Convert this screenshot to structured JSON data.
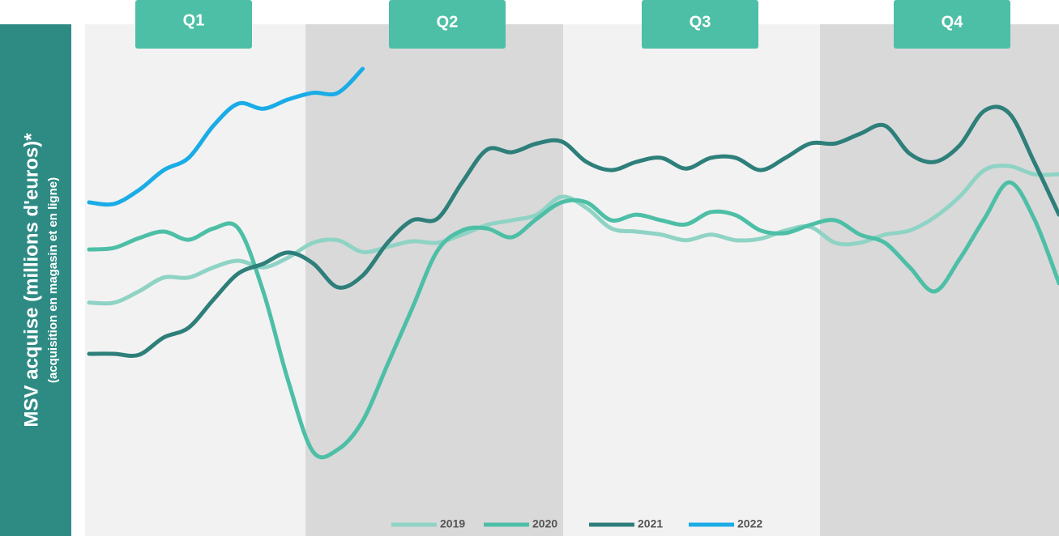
{
  "chart_data": {
    "type": "line",
    "y_label": "MSV acquise (millions d'euros)*",
    "y_label_note": "(acquisition en magasin et en ligne)",
    "quarters": [
      "Q1",
      "Q2",
      "Q3",
      "Q4"
    ],
    "categories": [
      null,
      null,
      null,
      null,
      null,
      null,
      null,
      null,
      null,
      null,
      null,
      null,
      null,
      null,
      null,
      null,
      null,
      null,
      null,
      null,
      null,
      null,
      null,
      null,
      null,
      null,
      null,
      null,
      null,
      null,
      null,
      null,
      null,
      null,
      null,
      null,
      null,
      null,
      null,
      null
    ],
    "ylim": [
      0,
      100
    ],
    "series": [
      {
        "name": "2019",
        "color": "#8fd3c5",
        "values": [
          45.6,
          45.6,
          47.8,
          50.5,
          50.5,
          52.5,
          53.8,
          52.5,
          54.4,
          57.3,
          57.8,
          55.5,
          56.5,
          57.6,
          57.3,
          58.9,
          60.8,
          61.7,
          62.8,
          66.3,
          64.1,
          60.1,
          59.5,
          58.9,
          57.8,
          58.9,
          57.8,
          58.1,
          59.7,
          60.4,
          57.3,
          57.3,
          58.9,
          59.7,
          62.3,
          66.3,
          71.5,
          72.3,
          70.7,
          70.7
        ]
      },
      {
        "name": "2020",
        "color": "#4dbfa6",
        "values": [
          56.0,
          56.3,
          58.2,
          59.5,
          57.9,
          60.1,
          60.1,
          47.8,
          30.4,
          16.5,
          16.9,
          22.5,
          33.5,
          44.6,
          55.7,
          59.7,
          60.1,
          58.4,
          62.0,
          65.2,
          65.2,
          61.7,
          62.8,
          61.7,
          60.9,
          63.3,
          62.7,
          59.7,
          59.2,
          60.8,
          61.7,
          58.9,
          57.3,
          52.5,
          47.8,
          54.1,
          62.0,
          69.1,
          62.0,
          49.4
        ]
      },
      {
        "name": "2021",
        "color": "#2e7f7a",
        "values": [
          35.6,
          35.6,
          35.4,
          38.8,
          40.7,
          46.2,
          51.3,
          53.2,
          55.4,
          53.3,
          48.6,
          50.9,
          57.3,
          61.7,
          62.0,
          69.1,
          75.5,
          75.0,
          76.7,
          77.1,
          73.1,
          71.5,
          73.1,
          73.9,
          71.8,
          73.9,
          73.9,
          71.5,
          73.9,
          76.7,
          76.7,
          78.6,
          80.2,
          74.7,
          73.1,
          76.3,
          83.1,
          82.6,
          73.1,
          62.8
        ]
      },
      {
        "name": "2022",
        "color": "#1aace6",
        "values": [
          65.2,
          64.9,
          67.6,
          71.5,
          73.9,
          80.2,
          84.5,
          83.5,
          85.3,
          86.6,
          86.6,
          91.3,
          null,
          null,
          null,
          null,
          null,
          null,
          null,
          null,
          null,
          null,
          null,
          null,
          null,
          null,
          null,
          null,
          null,
          null,
          null,
          null,
          null,
          null,
          null,
          null,
          null,
          null,
          null,
          null
        ]
      }
    ]
  }
}
